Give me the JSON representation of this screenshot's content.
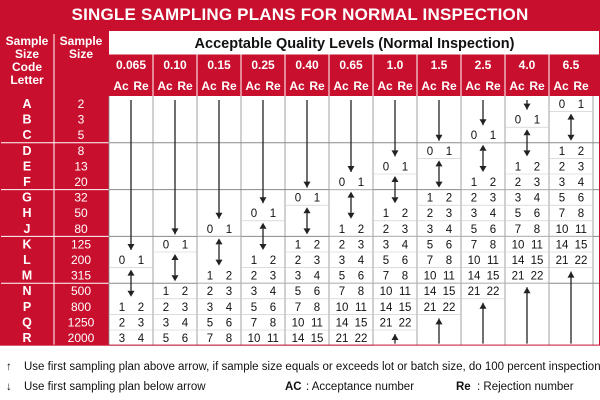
{
  "title": "SINGLE SAMPLING PLANS FOR NORMAL INSPECTION",
  "colors": {
    "red": "#c8102e",
    "line": "#8a8a8a",
    "white": "#ffffff"
  },
  "table": {
    "code_header": [
      "Sample",
      "Size",
      "Code",
      "Letter"
    ],
    "size_header": [
      "Sample",
      "Size"
    ],
    "aql_header": "Acceptable Quality Levels (Normal Inspection)",
    "aql_levels": [
      "0.065",
      "0.10",
      "0.15",
      "0.25",
      "0.40",
      "0.65",
      "1.0",
      "1.5",
      "2.5",
      "4.0",
      "6.5"
    ],
    "ac_label": "Ac",
    "re_label": "Re",
    "code_letters": [
      "A",
      "B",
      "C",
      "D",
      "E",
      "F",
      "G",
      "H",
      "J",
      "K",
      "L",
      "M",
      "N",
      "P",
      "Q",
      "R"
    ],
    "sample_sizes": [
      "2",
      "3",
      "5",
      "8",
      "13",
      "20",
      "32",
      "50",
      "80",
      "125",
      "200",
      "315",
      "500",
      "800",
      "1250",
      "2000"
    ],
    "cells": [
      [
        "D",
        "D",
        "D",
        "D",
        "D",
        "D",
        "D",
        "D",
        "D",
        "D",
        "0 1"
      ],
      [
        "D",
        "D",
        "D",
        "D",
        "D",
        "D",
        "D",
        "D",
        "D",
        "0 1",
        "U"
      ],
      [
        "D",
        "D",
        "D",
        "D",
        "D",
        "D",
        "D",
        "D",
        "0 1",
        "U",
        "D"
      ],
      [
        "D",
        "D",
        "D",
        "D",
        "D",
        "D",
        "D",
        "0 1",
        "U",
        "D",
        "1 2"
      ],
      [
        "D",
        "D",
        "D",
        "D",
        "D",
        "D",
        "0 1",
        "U",
        "D",
        "1 2",
        "2 3"
      ],
      [
        "D",
        "D",
        "D",
        "D",
        "D",
        "0 1",
        "U",
        "D",
        "1 2",
        "2 3",
        "3 4"
      ],
      [
        "D",
        "D",
        "D",
        "D",
        "0 1",
        "U",
        "D",
        "1 2",
        "2 3",
        "3 4",
        "5 6"
      ],
      [
        "D",
        "D",
        "D",
        "0 1",
        "U",
        "D",
        "1 2",
        "2 3",
        "3 4",
        "5 6",
        "7 8"
      ],
      [
        "D",
        "D",
        "0 1",
        "U",
        "D",
        "1 2",
        "2 3",
        "3 4",
        "5 6",
        "7 8",
        "10 11"
      ],
      [
        "D",
        "0 1",
        "U",
        "D",
        "1 2",
        "2 3",
        "3 4",
        "5 6",
        "7 8",
        "10 11",
        "14 15"
      ],
      [
        "0 1",
        "U",
        "D",
        "1 2",
        "2 3",
        "3 4",
        "5 6",
        "7 8",
        "10 11",
        "14 15",
        "21 22"
      ],
      [
        "U",
        "D",
        "1 2",
        "2 3",
        "3 4",
        "5 6",
        "7 8",
        "10 11",
        "14 15",
        "21 22",
        "U"
      ],
      [
        "D",
        "1 2",
        "2 3",
        "3 4",
        "5 6",
        "7 8",
        "10 11",
        "14 15",
        "21 22",
        "U",
        "U"
      ],
      [
        "1 2",
        "2 3",
        "3 4",
        "5 6",
        "7 8",
        "10 11",
        "14 15",
        "21 22",
        "U",
        "U",
        "U"
      ],
      [
        "2 3",
        "3 4",
        "5 6",
        "7 8",
        "10 11",
        "14 15",
        "21 22",
        "U",
        "U",
        "U",
        "U"
      ],
      [
        "3 4",
        "5 6",
        "7 8",
        "10 11",
        "14 15",
        "21 22",
        "U",
        "U",
        "U",
        "U",
        "U"
      ]
    ]
  },
  "legend": {
    "up_text": "Use first sampling plan above arrow, if sample size equals or exceeds lot or batch size, do 100 percent inspection.",
    "down_text": "Use first sampling plan below arrow",
    "ac_abbr": "AC",
    "ac_text": ": Acceptance number",
    "re_abbr": "Re",
    "re_text": ": Rejection number"
  }
}
